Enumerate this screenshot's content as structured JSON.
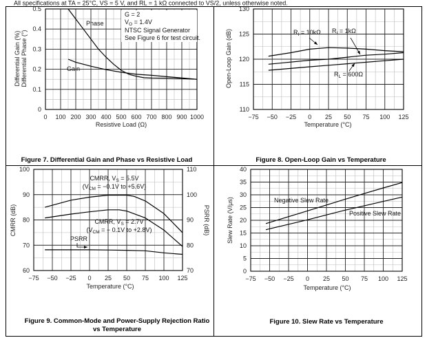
{
  "header_text": "All specifications at TA = 25°C, VS = 5 V, and RL = 1 kΩ connected to VS/2, unless otherwise noted.",
  "chart_data": [
    {
      "type": "line",
      "title": "Figure 7. Differential Gain and Phase vs Resistive Load",
      "xlabel": "Resistive Load (Ω)",
      "ylabel": [
        "Differential Gain (%)",
        "Differential Phase (°)"
      ],
      "xlim": [
        0,
        1000
      ],
      "ylim": [
        0,
        0.5
      ],
      "xticks": [
        "0",
        "100",
        "200",
        "300",
        "400",
        "500",
        "600",
        "700",
        "800",
        "900",
        "1000"
      ],
      "yticks": [
        "0",
        "0.1",
        "0.2",
        "0.3",
        "0.4",
        "0.5"
      ],
      "grid": true,
      "series": [
        {
          "name": "Phase",
          "x": [
            150,
            200,
            250,
            300,
            350,
            400,
            450,
            500,
            550,
            600,
            650,
            700,
            800,
            900,
            1000
          ],
          "y": [
            0.5,
            0.45,
            0.4,
            0.35,
            0.3,
            0.26,
            0.225,
            0.195,
            0.175,
            0.165,
            0.158,
            0.156,
            0.155,
            0.153,
            0.15
          ]
        },
        {
          "name": "Gain",
          "x": [
            150,
            200,
            300,
            400,
            500,
            600,
            700,
            800,
            900,
            1000
          ],
          "y": [
            0.25,
            0.235,
            0.215,
            0.198,
            0.185,
            0.175,
            0.17,
            0.163,
            0.157,
            0.15
          ]
        }
      ],
      "annotations": [
        [
          [
            "Phase",
            ""
          ]
        ],
        [
          [
            "Gain",
            ""
          ]
        ],
        [
          [
            "G = 2",
            ""
          ]
        ],
        [
          [
            "V",
            ""
          ],
          [
            "O",
            "sub"
          ],
          [
            " = 1.4V",
            ""
          ]
        ],
        [
          [
            "NTSC Signal Generator",
            ""
          ]
        ],
        [
          [
            "See Figure 6 for test circuit.",
            ""
          ]
        ]
      ]
    },
    {
      "type": "line",
      "title": "Figure 8. Open-Loop Gain vs Temperature",
      "xlabel": "Temperature (°C)",
      "ylabel": [
        "Open-Loop Gain (dB)"
      ],
      "xlim": [
        -75,
        125
      ],
      "ylim": [
        110,
        130
      ],
      "xticks": [
        "−75",
        "−50",
        "−25",
        "0",
        "25",
        "50",
        "75",
        "100",
        "125"
      ],
      "yticks": [
        "110",
        "115",
        "120",
        "125",
        "130"
      ],
      "grid": true,
      "series": [
        {
          "name": "RI = 10kΩ",
          "x": [
            -55,
            -25,
            0,
            25,
            50,
            75,
            100,
            125
          ],
          "y": [
            120.6,
            121.3,
            122,
            122.3,
            122.2,
            122,
            121.7,
            121.5
          ]
        },
        {
          "name": "RI = 1kΩ",
          "x": [
            -55,
            0,
            25,
            50,
            75,
            100,
            125
          ],
          "y": [
            119,
            119.8,
            120,
            120.4,
            120.8,
            121,
            121.3
          ]
        },
        {
          "name": "RL = 600Ω",
          "x": [
            -55,
            0,
            25,
            50,
            75,
            100,
            125
          ],
          "y": [
            117.8,
            118.5,
            118.8,
            119.1,
            119.4,
            119.7,
            120
          ]
        }
      ],
      "annotations": [
        [
          [
            "R",
            ""
          ],
          [
            "I",
            "sub"
          ],
          [
            " = 10kΩ",
            ""
          ]
        ],
        [
          [
            "R",
            ""
          ],
          [
            "I",
            "sub"
          ],
          [
            " = 1kΩ",
            ""
          ]
        ],
        [
          [
            "R",
            ""
          ],
          [
            "L",
            "sub"
          ],
          [
            " = 600Ω",
            ""
          ]
        ]
      ]
    },
    {
      "type": "line",
      "title": [
        "Figure 9. Common-Mode and Power-Supply Rejection Ratio",
        "vs Temperature"
      ],
      "xlabel": "Temperature (°C)",
      "ylabel": [
        "CMRR (dB)"
      ],
      "ylabel_right": "PSRR (dB)",
      "xlim": [
        -75,
        125
      ],
      "ylim": [
        60,
        100
      ],
      "ylim_right": [
        70,
        110
      ],
      "xticks": [
        "−75",
        "−50",
        "−25",
        "0",
        "25",
        "50",
        "75",
        "100",
        "125"
      ],
      "yticks": [
        "60",
        "70",
        "80",
        "90",
        "100"
      ],
      "yticks_right": [
        "70",
        "80",
        "90",
        "100",
        "110"
      ],
      "grid": true,
      "series": [
        {
          "name": "CMRR, VS = 5.5V",
          "axis": "left",
          "x": [
            -60,
            -25,
            0,
            25,
            50,
            60,
            75,
            100,
            125
          ],
          "y": [
            85,
            87.8,
            89,
            89.8,
            89.8,
            89.3,
            87.5,
            82.5,
            75
          ]
        },
        {
          "name": "CMRR, VS = 2.7V",
          "axis": "left",
          "x": [
            -60,
            -25,
            0,
            25,
            40,
            50,
            75,
            100,
            125
          ],
          "y": [
            80.8,
            82.3,
            83.2,
            84,
            84,
            83.5,
            80.8,
            76,
            69.5
          ]
        },
        {
          "name": "PSRR",
          "axis": "right",
          "x": [
            -60,
            0,
            25,
            50,
            75,
            100,
            125
          ],
          "y": [
            78.2,
            78.2,
            78.1,
            78,
            77.8,
            77,
            76.4
          ]
        }
      ],
      "annotations": [
        [
          [
            "CMRR, V",
            ""
          ],
          [
            "S",
            "sub"
          ],
          [
            " = 5.5V",
            ""
          ]
        ],
        [
          [
            "(V",
            ""
          ],
          [
            "CM",
            "sub"
          ],
          [
            " = −0.1V to +5.6V)",
            ""
          ]
        ],
        [
          [
            "CMRR, V",
            ""
          ],
          [
            "S",
            "sub"
          ],
          [
            " = 2.7V",
            ""
          ]
        ],
        [
          [
            "(V",
            ""
          ],
          [
            "CM",
            "sub"
          ],
          [
            " = − 0.1V to +2.8V)",
            ""
          ]
        ],
        [
          [
            "PSRR",
            ""
          ]
        ]
      ]
    },
    {
      "type": "line",
      "title": "Figure 10. Slew Rate vs Temperature",
      "xlabel": "Temperature (°C)",
      "ylabel": [
        "Slew Rate (V/μs)"
      ],
      "xlim": [
        -75,
        125
      ],
      "ylim": [
        0,
        40
      ],
      "xticks": [
        "−75",
        "−50",
        "−25",
        "0",
        "25",
        "50",
        "75",
        "100",
        "125"
      ],
      "yticks": [
        "0",
        "5",
        "10",
        "15",
        "20",
        "25",
        "30",
        "35",
        "40"
      ],
      "grid": true,
      "series": [
        {
          "name": "Negative Slew Rate",
          "x": [
            -55,
            0,
            25,
            50,
            75,
            100,
            125
          ],
          "y": [
            18.7,
            23.7,
            26,
            28.3,
            30.5,
            32.7,
            34.8
          ]
        },
        {
          "name": "Positive Slew Rate",
          "x": [
            -55,
            0,
            25,
            50,
            75,
            100,
            125
          ],
          "y": [
            16.3,
            20.2,
            22.1,
            24,
            25.7,
            27.4,
            29.1
          ]
        }
      ],
      "annotations": [
        [
          [
            "Negative Slew Rate",
            ""
          ]
        ],
        [
          [
            "Positive Slew Rate",
            ""
          ]
        ]
      ]
    }
  ]
}
